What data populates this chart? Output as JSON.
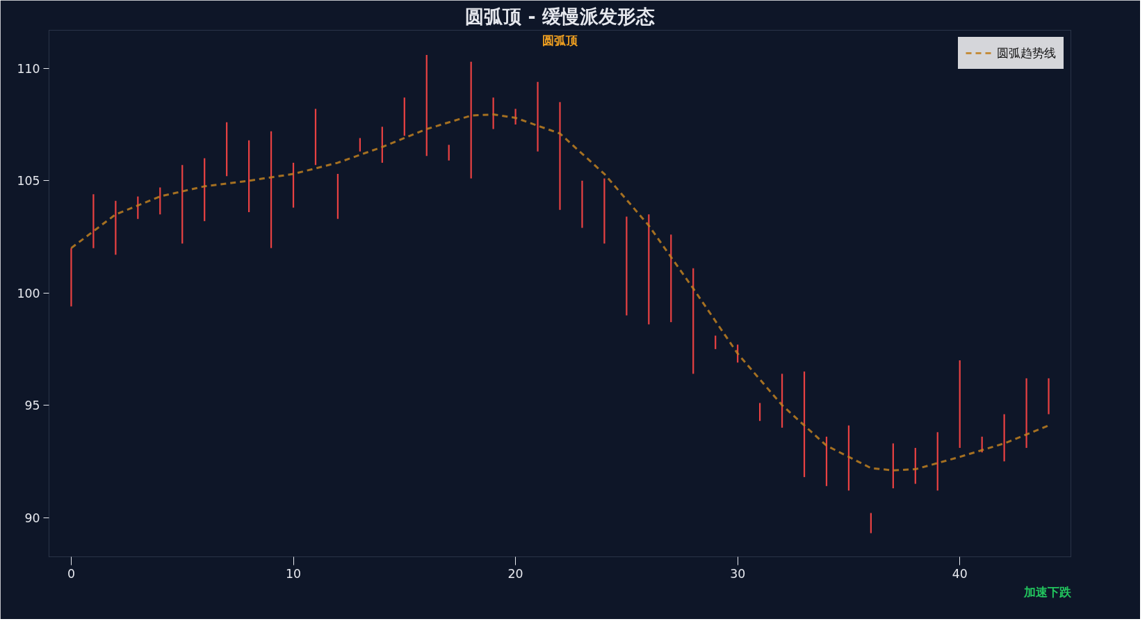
{
  "chart_data": {
    "type": "bar",
    "title": "圆弧顶 - 缓慢派发形态",
    "x": [
      0,
      1,
      2,
      3,
      4,
      5,
      6,
      7,
      8,
      9,
      10,
      11,
      12,
      13,
      14,
      15,
      16,
      17,
      18,
      19,
      20,
      21,
      22,
      23,
      24,
      25,
      26,
      27,
      28,
      29,
      30,
      31,
      32,
      33,
      34,
      35,
      36,
      37,
      38,
      39,
      40,
      41,
      42,
      43,
      44
    ],
    "series": [
      {
        "color": "#e84142",
        "base": [
          99.4,
          102.0,
          101.7,
          103.3,
          103.5,
          102.2,
          103.2,
          105.2,
          103.6,
          102.0,
          103.8,
          105.7,
          103.3,
          106.3,
          105.8,
          107.0,
          106.1,
          105.9,
          105.1,
          107.3,
          107.5,
          106.3,
          103.7,
          102.9,
          102.2,
          99.0,
          98.6,
          98.7,
          96.4,
          97.5,
          96.9,
          94.3,
          94.0,
          91.8,
          91.4,
          91.2,
          89.3,
          91.3,
          91.5,
          91.2,
          93.1,
          92.9,
          92.5,
          93.1,
          94.6
        ],
        "values": [
          2.6,
          2.4,
          2.4,
          1.0,
          1.2,
          3.5,
          2.8,
          2.4,
          3.2,
          5.2,
          2.0,
          2.5,
          2.0,
          0.6,
          1.6,
          1.7,
          4.5,
          0.7,
          5.2,
          1.4,
          0.7,
          3.1,
          4.8,
          2.1,
          2.9,
          4.4,
          4.9,
          3.9,
          4.7,
          0.6,
          0.8,
          0.8,
          2.4,
          4.7,
          2.2,
          2.9,
          0.9,
          2.0,
          1.6,
          2.6,
          3.9,
          0.7,
          2.1,
          3.1,
          1.6
        ]
      },
      {
        "type": "line",
        "name": "圆弧趋势线",
        "color": "#c08020",
        "line_style": "dashed",
        "x": [
          0,
          2,
          4,
          6,
          8,
          10,
          12,
          14,
          16,
          18,
          19,
          20,
          22,
          24,
          26,
          28,
          30,
          32,
          34,
          36,
          37,
          38,
          40,
          42,
          44
        ],
        "values": [
          102.0,
          103.5,
          104.3,
          104.75,
          105.0,
          105.3,
          105.8,
          106.5,
          107.3,
          107.9,
          107.95,
          107.8,
          107.1,
          105.3,
          103.0,
          100.2,
          97.3,
          95.0,
          93.2,
          92.2,
          92.1,
          92.15,
          92.7,
          93.3,
          94.1
        ]
      }
    ],
    "annotations": [
      "圆弧顶",
      "加速下跌"
    ],
    "xlim": [
      -1,
      45
    ],
    "ylim": [
      88.25,
      111.7
    ],
    "xticks": [
      0,
      10,
      20,
      30,
      40
    ],
    "yticks": [
      90,
      95,
      100,
      105,
      110
    ],
    "legend": "top right",
    "grid": false
  }
}
